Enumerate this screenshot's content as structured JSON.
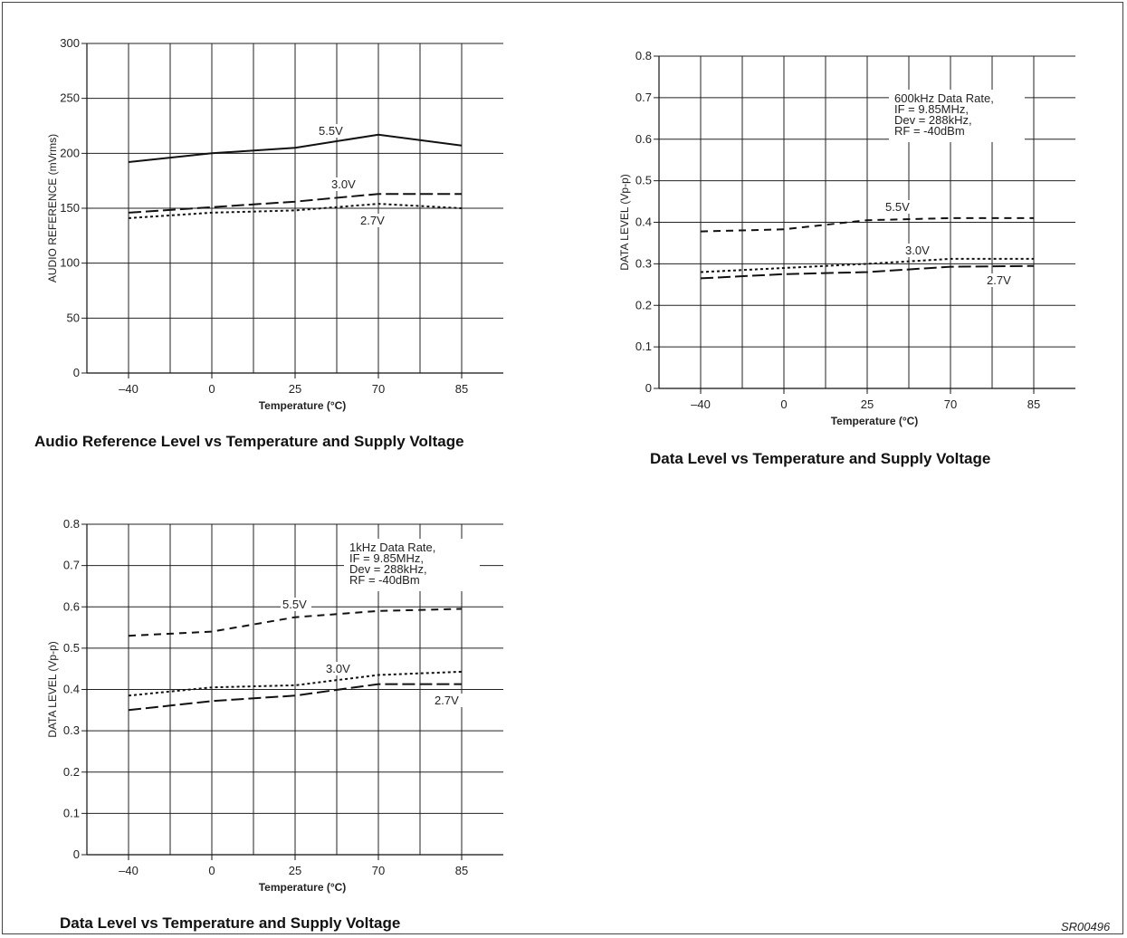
{
  "figure_id": "SR00496",
  "chart_data": [
    {
      "type": "line",
      "title": "Audio Reference Level vs Temperature and Supply Voltage",
      "xlabel": "Temperature (°C)",
      "ylabel": "AUDIO REFERENCE (mVrms)",
      "categories": [
        "–40",
        "0",
        "25",
        "70",
        "85"
      ],
      "ylim": [
        0,
        300
      ],
      "yticks": [
        "0",
        "50",
        "100",
        "150",
        "200",
        "250",
        "300"
      ],
      "grid": true,
      "annotation": [],
      "series": [
        {
          "name": "5.5V",
          "style": "solid",
          "values": [
            192,
            200,
            205,
            217,
            207
          ]
        },
        {
          "name": "3.0V",
          "style": "dashed",
          "values": [
            146,
            151,
            156,
            163,
            163
          ]
        },
        {
          "name": "2.7V",
          "style": "dotted",
          "values": [
            141,
            146,
            148,
            154,
            150
          ]
        }
      ]
    },
    {
      "type": "line",
      "title": "Data Level  vs Temperature and Supply Voltage",
      "xlabel": "Temperature (°C)",
      "ylabel": "DATA LEVEL (Vp-p)",
      "categories": [
        "–40",
        "0",
        "25",
        "70",
        "85"
      ],
      "ylim": [
        0,
        0.8
      ],
      "yticks": [
        "0",
        "0.1",
        "0.2",
        "0.3",
        "0.4",
        "0.5",
        "0.6",
        "0.7",
        "0.8"
      ],
      "grid": true,
      "annotation": [
        "600kHz Data Rate,",
        "IF = 9.85MHz,",
        "Dev = 288kHz,",
        "RF = -40dBm"
      ],
      "series": [
        {
          "name": "5.5V",
          "style": "dashed-short",
          "values": [
            0.378,
            0.383,
            0.405,
            0.41,
            0.41
          ]
        },
        {
          "name": "3.0V",
          "style": "dotted",
          "values": [
            0.28,
            0.29,
            0.3,
            0.312,
            0.312
          ]
        },
        {
          "name": "2.7V",
          "style": "dashed",
          "values": [
            0.265,
            0.275,
            0.28,
            0.293,
            0.295
          ]
        }
      ]
    },
    {
      "type": "line",
      "title": "Data Level  vs Temperature and Supply Voltage",
      "xlabel": "Temperature (°C)",
      "ylabel": "DATA LEVEL (Vp-p)",
      "categories": [
        "–40",
        "0",
        "25",
        "70",
        "85"
      ],
      "ylim": [
        0,
        0.8
      ],
      "yticks": [
        "0",
        "0.1",
        "0.2",
        "0.3",
        "0.4",
        "0.5",
        "0.6",
        "0.7",
        "0.8"
      ],
      "grid": true,
      "annotation": [
        "1kHz Data Rate,",
        "IF = 9.85MHz,",
        "Dev = 288kHz,",
        "RF = -40dBm"
      ],
      "series": [
        {
          "name": "5.5V",
          "style": "dashed-short",
          "values": [
            0.53,
            0.54,
            0.575,
            0.59,
            0.595
          ]
        },
        {
          "name": "3.0V",
          "style": "dotted",
          "values": [
            0.385,
            0.405,
            0.41,
            0.435,
            0.443
          ]
        },
        {
          "name": "2.7V",
          "style": "dashed",
          "values": [
            0.35,
            0.372,
            0.385,
            0.413,
            0.413
          ]
        }
      ]
    }
  ]
}
